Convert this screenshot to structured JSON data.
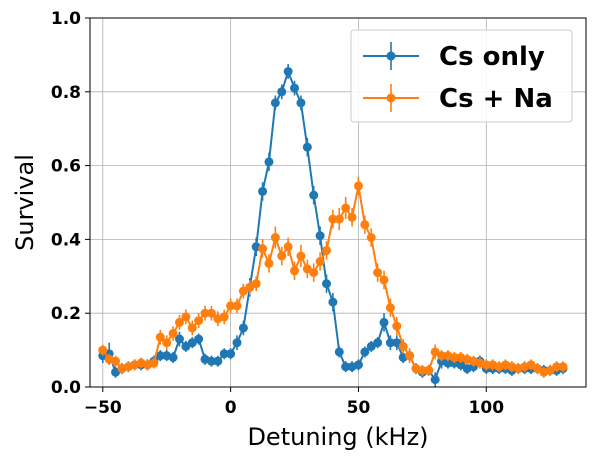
{
  "chart_data": {
    "type": "line",
    "xlabel": "Detuning (kHz)",
    "ylabel": "Survival",
    "xlim": [
      -55,
      139
    ],
    "ylim": [
      0,
      1.0
    ],
    "xticks": [
      -50,
      0,
      50,
      100
    ],
    "xtick_labels": [
      "−50",
      "0",
      "50",
      "100"
    ],
    "yticks": [
      0.0,
      0.2,
      0.4,
      0.6,
      0.8,
      1.0
    ],
    "ytick_labels": [
      "0.0",
      "0.2",
      "0.4",
      "0.6",
      "0.8",
      "1.0"
    ],
    "grid": true,
    "legend_position": "top-right",
    "series": [
      {
        "name": "Cs only",
        "color": "#1f77b4",
        "points": [
          [
            -50,
            0.085,
            0.02
          ],
          [
            -47.5,
            0.09,
            0.03
          ],
          [
            -45,
            0.04,
            0.015
          ],
          [
            -42.5,
            0.05,
            0.015
          ],
          [
            -40,
            0.055,
            0.015
          ],
          [
            -37.5,
            0.06,
            0.015
          ],
          [
            -35,
            0.06,
            0.015
          ],
          [
            -32.5,
            0.06,
            0.015
          ],
          [
            -30,
            0.07,
            0.015
          ],
          [
            -27.5,
            0.085,
            0.015
          ],
          [
            -25,
            0.085,
            0.015
          ],
          [
            -22.5,
            0.08,
            0.015
          ],
          [
            -20,
            0.13,
            0.02
          ],
          [
            -17.5,
            0.11,
            0.015
          ],
          [
            -15,
            0.12,
            0.015
          ],
          [
            -12.5,
            0.13,
            0.015
          ],
          [
            -10,
            0.075,
            0.015
          ],
          [
            -7.5,
            0.07,
            0.015
          ],
          [
            -5,
            0.07,
            0.015
          ],
          [
            -2.5,
            0.09,
            0.015
          ],
          [
            0,
            0.09,
            0.015
          ],
          [
            2.5,
            0.12,
            0.02
          ],
          [
            5,
            0.16,
            0.02
          ],
          [
            7.5,
            0.27,
            0.025
          ],
          [
            10,
            0.38,
            0.025
          ],
          [
            12.5,
            0.53,
            0.025
          ],
          [
            15,
            0.61,
            0.025
          ],
          [
            17.5,
            0.77,
            0.02
          ],
          [
            20,
            0.8,
            0.02
          ],
          [
            22.5,
            0.855,
            0.02
          ],
          [
            25,
            0.81,
            0.02
          ],
          [
            27.5,
            0.77,
            0.02
          ],
          [
            30,
            0.65,
            0.025
          ],
          [
            32.5,
            0.52,
            0.025
          ],
          [
            35,
            0.41,
            0.025
          ],
          [
            37.5,
            0.28,
            0.025
          ],
          [
            40,
            0.23,
            0.025
          ],
          [
            42.5,
            0.095,
            0.015
          ],
          [
            45,
            0.055,
            0.015
          ],
          [
            47.5,
            0.055,
            0.015
          ],
          [
            50,
            0.06,
            0.015
          ],
          [
            52.5,
            0.095,
            0.015
          ],
          [
            55,
            0.11,
            0.015
          ],
          [
            57.5,
            0.12,
            0.015
          ],
          [
            60,
            0.175,
            0.025
          ],
          [
            62.5,
            0.12,
            0.02
          ],
          [
            65,
            0.12,
            0.02
          ],
          [
            67.5,
            0.08,
            0.015
          ],
          [
            70,
            0.085,
            0.015
          ],
          [
            72.5,
            0.05,
            0.015
          ],
          [
            75,
            0.04,
            0.015
          ],
          [
            77.5,
            0.045,
            0.015
          ],
          [
            80,
            0.02,
            0.02
          ],
          [
            82.5,
            0.07,
            0.02
          ],
          [
            85,
            0.065,
            0.015
          ],
          [
            87.5,
            0.065,
            0.015
          ],
          [
            90,
            0.06,
            0.015
          ],
          [
            92.5,
            0.05,
            0.015
          ],
          [
            95,
            0.055,
            0.015
          ],
          [
            97.5,
            0.07,
            0.015
          ],
          [
            100,
            0.05,
            0.015
          ],
          [
            102.5,
            0.05,
            0.015
          ],
          [
            105,
            0.05,
            0.015
          ],
          [
            107.5,
            0.05,
            0.015
          ],
          [
            110,
            0.045,
            0.015
          ],
          [
            112.5,
            0.05,
            0.015
          ],
          [
            115,
            0.05,
            0.015
          ],
          [
            117.5,
            0.05,
            0.015
          ],
          [
            120,
            0.05,
            0.015
          ],
          [
            122.5,
            0.045,
            0.015
          ],
          [
            125,
            0.045,
            0.015
          ],
          [
            127.5,
            0.045,
            0.015
          ],
          [
            130,
            0.05,
            0.015
          ]
        ]
      },
      {
        "name": "Cs + Na",
        "color": "#ff7f0e",
        "points": [
          [
            -50,
            0.1,
            0.015
          ],
          [
            -47.5,
            0.075,
            0.015
          ],
          [
            -45,
            0.07,
            0.015
          ],
          [
            -42.5,
            0.05,
            0.015
          ],
          [
            -40,
            0.055,
            0.015
          ],
          [
            -37.5,
            0.06,
            0.015
          ],
          [
            -35,
            0.065,
            0.015
          ],
          [
            -32.5,
            0.06,
            0.015
          ],
          [
            -30,
            0.065,
            0.015
          ],
          [
            -27.5,
            0.135,
            0.02
          ],
          [
            -25,
            0.12,
            0.02
          ],
          [
            -22.5,
            0.145,
            0.02
          ],
          [
            -20,
            0.175,
            0.02
          ],
          [
            -17.5,
            0.19,
            0.02
          ],
          [
            -15,
            0.16,
            0.02
          ],
          [
            -12.5,
            0.18,
            0.02
          ],
          [
            -10,
            0.2,
            0.02
          ],
          [
            -7.5,
            0.2,
            0.02
          ],
          [
            -5,
            0.185,
            0.02
          ],
          [
            -2.5,
            0.19,
            0.02
          ],
          [
            0,
            0.22,
            0.02
          ],
          [
            2.5,
            0.22,
            0.02
          ],
          [
            5,
            0.26,
            0.02
          ],
          [
            7.5,
            0.27,
            0.02
          ],
          [
            10,
            0.28,
            0.02
          ],
          [
            12.5,
            0.375,
            0.025
          ],
          [
            15,
            0.335,
            0.025
          ],
          [
            17.5,
            0.405,
            0.03
          ],
          [
            20,
            0.355,
            0.025
          ],
          [
            22.5,
            0.38,
            0.025
          ],
          [
            25,
            0.315,
            0.025
          ],
          [
            27.5,
            0.355,
            0.03
          ],
          [
            30,
            0.32,
            0.025
          ],
          [
            32.5,
            0.31,
            0.025
          ],
          [
            35,
            0.34,
            0.025
          ],
          [
            37.5,
            0.37,
            0.025
          ],
          [
            40,
            0.455,
            0.025
          ],
          [
            42.5,
            0.455,
            0.03
          ],
          [
            45,
            0.485,
            0.03
          ],
          [
            47.5,
            0.46,
            0.025
          ],
          [
            50,
            0.545,
            0.025
          ],
          [
            52.5,
            0.44,
            0.025
          ],
          [
            55,
            0.405,
            0.025
          ],
          [
            57.5,
            0.31,
            0.025
          ],
          [
            60,
            0.29,
            0.025
          ],
          [
            62.5,
            0.215,
            0.025
          ],
          [
            65,
            0.165,
            0.025
          ],
          [
            67.5,
            0.11,
            0.02
          ],
          [
            70,
            0.085,
            0.02
          ],
          [
            72.5,
            0.05,
            0.015
          ],
          [
            75,
            0.045,
            0.015
          ],
          [
            77.5,
            0.045,
            0.015
          ],
          [
            80,
            0.095,
            0.02
          ],
          [
            82.5,
            0.085,
            0.015
          ],
          [
            85,
            0.085,
            0.015
          ],
          [
            87.5,
            0.08,
            0.015
          ],
          [
            90,
            0.08,
            0.015
          ],
          [
            92.5,
            0.075,
            0.015
          ],
          [
            95,
            0.07,
            0.015
          ],
          [
            97.5,
            0.065,
            0.015
          ],
          [
            100,
            0.06,
            0.015
          ],
          [
            102.5,
            0.06,
            0.015
          ],
          [
            105,
            0.055,
            0.015
          ],
          [
            107.5,
            0.06,
            0.015
          ],
          [
            110,
            0.055,
            0.015
          ],
          [
            112.5,
            0.05,
            0.015
          ],
          [
            115,
            0.055,
            0.015
          ],
          [
            117.5,
            0.06,
            0.015
          ],
          [
            120,
            0.05,
            0.015
          ],
          [
            122.5,
            0.04,
            0.015
          ],
          [
            125,
            0.045,
            0.015
          ],
          [
            127.5,
            0.055,
            0.015
          ],
          [
            130,
            0.055,
            0.015
          ]
        ]
      }
    ]
  }
}
